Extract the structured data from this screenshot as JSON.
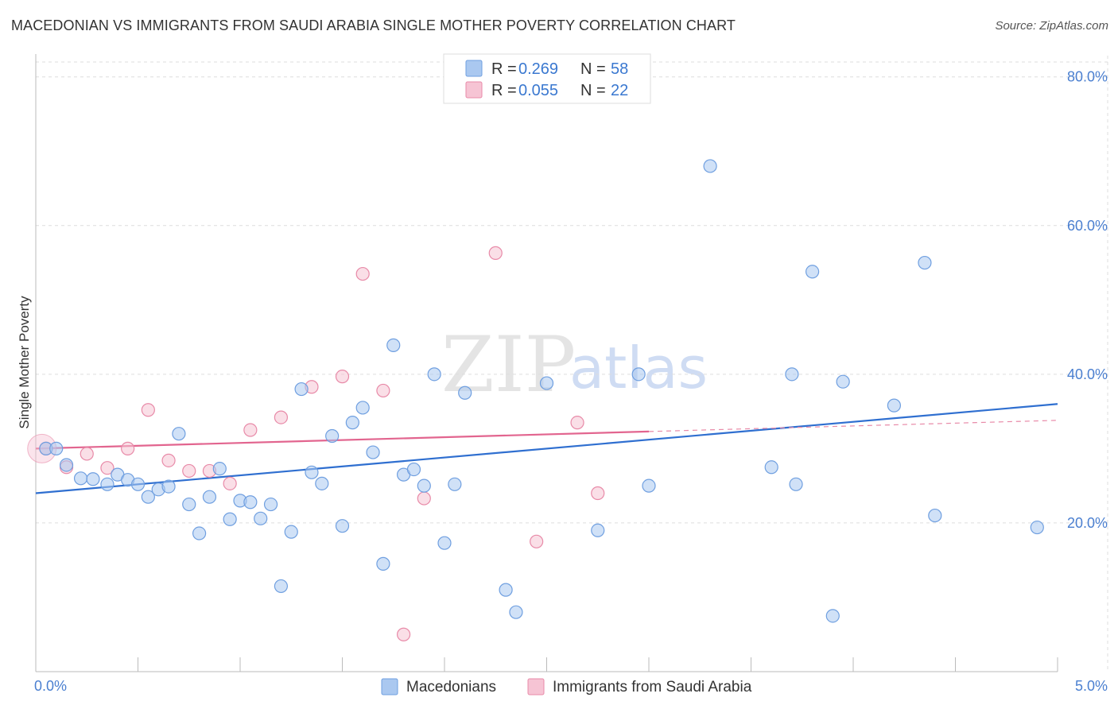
{
  "header": {
    "title": "MACEDONIAN VS IMMIGRANTS FROM SAUDI ARABIA SINGLE MOTHER POVERTY CORRELATION CHART",
    "source": "Source: ZipAtlas.com"
  },
  "watermark": {
    "zip": "ZIP",
    "atlas": "atlas"
  },
  "colors": {
    "blue_fill": "#aac8f0",
    "blue_stroke": "#6f9fe0",
    "blue_line": "#2f6fd0",
    "pink_fill": "#f6c4d4",
    "pink_stroke": "#e88aa8",
    "pink_line": "#e2658f",
    "grid": "#dddddd",
    "tick_label": "#4a7fd0"
  },
  "legend": {
    "rows": [
      {
        "r_label": "R =",
        "r_value": "0.269",
        "n_label": "N =",
        "n_value": "58"
      },
      {
        "r_label": "R =",
        "r_value": "0.055",
        "n_label": "N =",
        "n_value": "22"
      }
    ]
  },
  "chart_data": {
    "type": "scatter",
    "title": "MACEDONIAN VS IMMIGRANTS FROM SAUDI ARABIA SINGLE MOTHER POVERTY CORRELATION CHART",
    "xlabel": "",
    "ylabel": "Single Mother Poverty",
    "xlim": [
      0,
      5
    ],
    "ylim": [
      0,
      82
    ],
    "x_tick_labels": [
      "0.0%",
      "5.0%"
    ],
    "y_ticks": [
      20,
      40,
      60,
      80
    ],
    "y_tick_labels": [
      "20.0%",
      "40.0%",
      "60.0%",
      "80.0%"
    ],
    "grid": true,
    "legend_position": "top-center",
    "series": [
      {
        "name": "Macedonians",
        "color": "#6f9fe0",
        "R": 0.269,
        "N": 58,
        "trend": {
          "x": [
            0,
            5
          ],
          "y": [
            24.0,
            36.0
          ]
        },
        "points": [
          [
            0.05,
            30.0
          ],
          [
            0.1,
            30.0
          ],
          [
            0.15,
            27.8
          ],
          [
            0.22,
            26.0
          ],
          [
            0.28,
            25.9
          ],
          [
            0.35,
            25.2
          ],
          [
            0.4,
            26.5
          ],
          [
            0.45,
            25.8
          ],
          [
            0.5,
            25.2
          ],
          [
            0.55,
            23.5
          ],
          [
            0.6,
            24.5
          ],
          [
            0.65,
            24.9
          ],
          [
            0.7,
            32.0
          ],
          [
            0.75,
            22.5
          ],
          [
            0.8,
            18.6
          ],
          [
            0.85,
            23.5
          ],
          [
            0.9,
            27.3
          ],
          [
            0.95,
            20.5
          ],
          [
            1.0,
            23.0
          ],
          [
            1.05,
            22.8
          ],
          [
            1.1,
            20.6
          ],
          [
            1.15,
            22.5
          ],
          [
            1.2,
            11.5
          ],
          [
            1.25,
            18.8
          ],
          [
            1.3,
            38.0
          ],
          [
            1.35,
            26.8
          ],
          [
            1.4,
            25.3
          ],
          [
            1.45,
            31.7
          ],
          [
            1.5,
            19.6
          ],
          [
            1.55,
            33.5
          ],
          [
            1.6,
            35.5
          ],
          [
            1.65,
            29.5
          ],
          [
            1.7,
            14.5
          ],
          [
            1.75,
            43.9
          ],
          [
            1.8,
            26.5
          ],
          [
            1.85,
            27.2
          ],
          [
            1.9,
            25.0
          ],
          [
            1.95,
            40.0
          ],
          [
            2.0,
            17.3
          ],
          [
            2.05,
            25.2
          ],
          [
            2.1,
            37.5
          ],
          [
            2.3,
            11.0
          ],
          [
            2.35,
            8.0
          ],
          [
            2.5,
            38.8
          ],
          [
            2.75,
            19.0
          ],
          [
            2.95,
            40.0
          ],
          [
            3.0,
            25.0
          ],
          [
            3.3,
            68.0
          ],
          [
            3.6,
            27.5
          ],
          [
            3.7,
            40.0
          ],
          [
            3.72,
            25.2
          ],
          [
            3.8,
            53.8
          ],
          [
            3.9,
            7.5
          ],
          [
            3.95,
            39.0
          ],
          [
            4.2,
            35.8
          ],
          [
            4.35,
            55.0
          ],
          [
            4.4,
            21.0
          ],
          [
            4.9,
            19.4
          ]
        ]
      },
      {
        "name": "Immigrants from Saudi Arabia",
        "color": "#e88aa8",
        "R": 0.055,
        "N": 22,
        "trend_solid": {
          "x": [
            0,
            3.0
          ],
          "y": [
            30.0,
            32.3
          ]
        },
        "trend_dashed": {
          "x": [
            3.0,
            5
          ],
          "y": [
            32.3,
            33.8
          ]
        },
        "points": [
          [
            0.05,
            30.0
          ],
          [
            0.15,
            27.5
          ],
          [
            0.25,
            29.3
          ],
          [
            0.35,
            27.4
          ],
          [
            0.45,
            30.0
          ],
          [
            0.55,
            35.2
          ],
          [
            0.65,
            28.4
          ],
          [
            0.75,
            27.0
          ],
          [
            0.85,
            27.0
          ],
          [
            0.95,
            25.3
          ],
          [
            1.05,
            32.5
          ],
          [
            1.2,
            34.2
          ],
          [
            1.35,
            38.3
          ],
          [
            1.5,
            39.7
          ],
          [
            1.6,
            53.5
          ],
          [
            1.7,
            37.8
          ],
          [
            1.8,
            5.0
          ],
          [
            1.9,
            23.3
          ],
          [
            2.25,
            56.3
          ],
          [
            2.45,
            17.5
          ],
          [
            2.65,
            33.5
          ],
          [
            2.75,
            24.0
          ]
        ]
      }
    ]
  }
}
